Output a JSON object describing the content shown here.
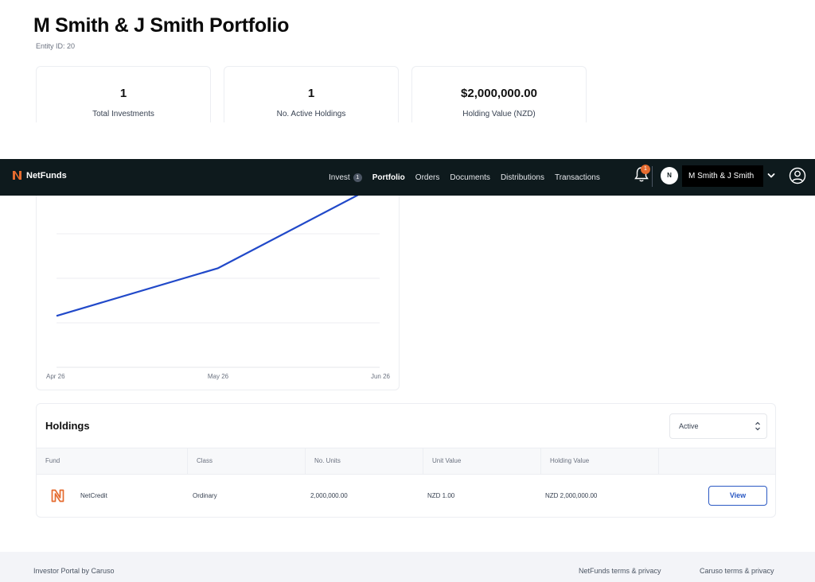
{
  "header": {
    "title": "M Smith & J Smith Portfolio",
    "entity_id": "Entity ID: 20"
  },
  "stats": [
    {
      "value": "1",
      "label": "Total Investments"
    },
    {
      "value": "1",
      "label": "No. Active Holdings"
    },
    {
      "value": "$2,000,000.00",
      "label": "Holding Value (NZD)"
    }
  ],
  "nav": {
    "brand": "NetFunds",
    "links": [
      {
        "label": "Invest",
        "badge": "1"
      },
      {
        "label": "Portfolio",
        "active": true
      },
      {
        "label": "Orders"
      },
      {
        "label": "Documents"
      },
      {
        "label": "Distributions"
      },
      {
        "label": "Transactions"
      }
    ],
    "notification_count": "1",
    "avatar_initial": "N",
    "account_name": "M Smith & J Smith",
    "icons": [
      "bell-icon",
      "chevron-down-icon",
      "user-circle-icon"
    ]
  },
  "chart_data": {
    "type": "line",
    "x": [
      "Apr 26",
      "May 26",
      "Jun 26"
    ],
    "series": [
      {
        "values": [
          0.28,
          0.54,
          1.0
        ]
      }
    ],
    "ylim": [
      0,
      1
    ],
    "grid": true,
    "color": "#2149c9"
  },
  "holdings": {
    "title": "Holdings",
    "filter_value": "Active",
    "columns": [
      "Fund",
      "Class",
      "No. Units",
      "Unit Value",
      "Holding Value"
    ],
    "rows": [
      {
        "fund": "NetCredit",
        "class": "Ordinary",
        "units": "2,000,000.00",
        "unit_value": "NZD 1.00",
        "holding_value": "NZD 2,000,000.00",
        "action": "View"
      }
    ]
  },
  "footer": {
    "left": "Investor Portal by Caruso",
    "links": [
      "NetFunds terms & privacy",
      "Caruso terms & privacy"
    ]
  },
  "colors": {
    "nav_bg": "#0e1a1d",
    "brand_orange": "#e56b2f",
    "accent_blue": "#2b59c3"
  }
}
